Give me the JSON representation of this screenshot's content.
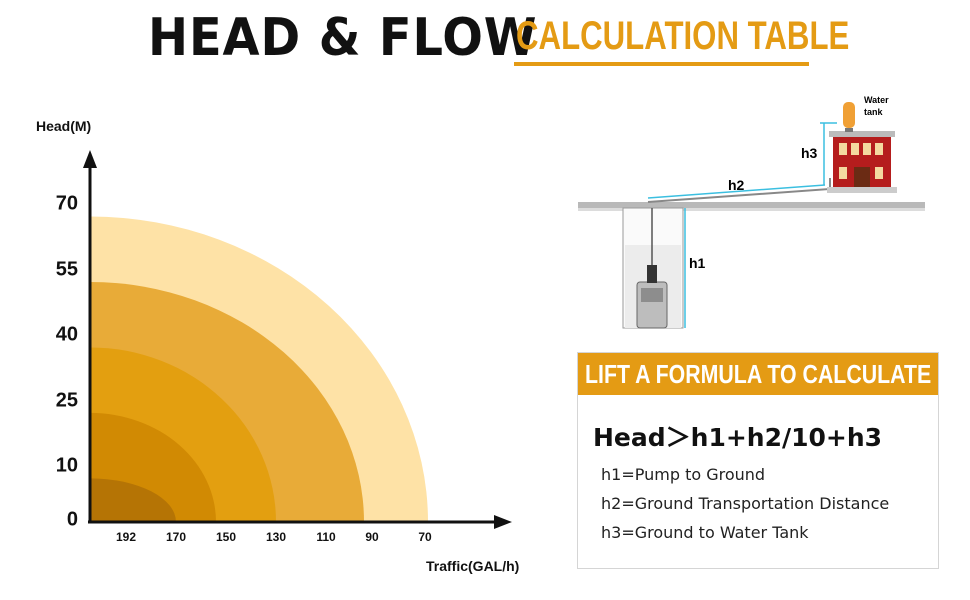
{
  "title": {
    "main": "HEAD & FLOW",
    "sub": "CALCULATION TABLE"
  },
  "colors": {
    "accent": "#e49b14",
    "axis": "#111111"
  },
  "chart_data": {
    "type": "area",
    "title": "",
    "ylabel": "Head(M)",
    "xlabel": "Traffic(GAL/h)",
    "y_ticks": [
      "0",
      "10",
      "25",
      "40",
      "55",
      "70"
    ],
    "x_ticks": [
      "192",
      "170",
      "150",
      "130",
      "110",
      "90",
      "70"
    ],
    "series": [
      {
        "head_m": 70,
        "flow_gal_h": 70,
        "color": "#fee2a6"
      },
      {
        "head_m": 55,
        "flow_gal_h": 90,
        "color": "#e8ab38"
      },
      {
        "head_m": 40,
        "flow_gal_h": 130,
        "color": "#e39f10"
      },
      {
        "head_m": 25,
        "flow_gal_h": 150,
        "color": "#d18a03"
      },
      {
        "head_m": 10,
        "flow_gal_h": 170,
        "color": "#b57405"
      }
    ]
  },
  "diagram": {
    "water_tank_line1": "Water",
    "water_tank_line2": "tank",
    "h1": "h1",
    "h2": "h2",
    "h3": "h3"
  },
  "formula_box": {
    "header": "LIFT A FORMULA TO CALCULATE",
    "formula": "Head＞h1+h2/10+h3",
    "defs": [
      "h1=Pump to Ground",
      "h2=Ground Transportation Distance",
      "h3=Ground to Water Tank"
    ]
  }
}
